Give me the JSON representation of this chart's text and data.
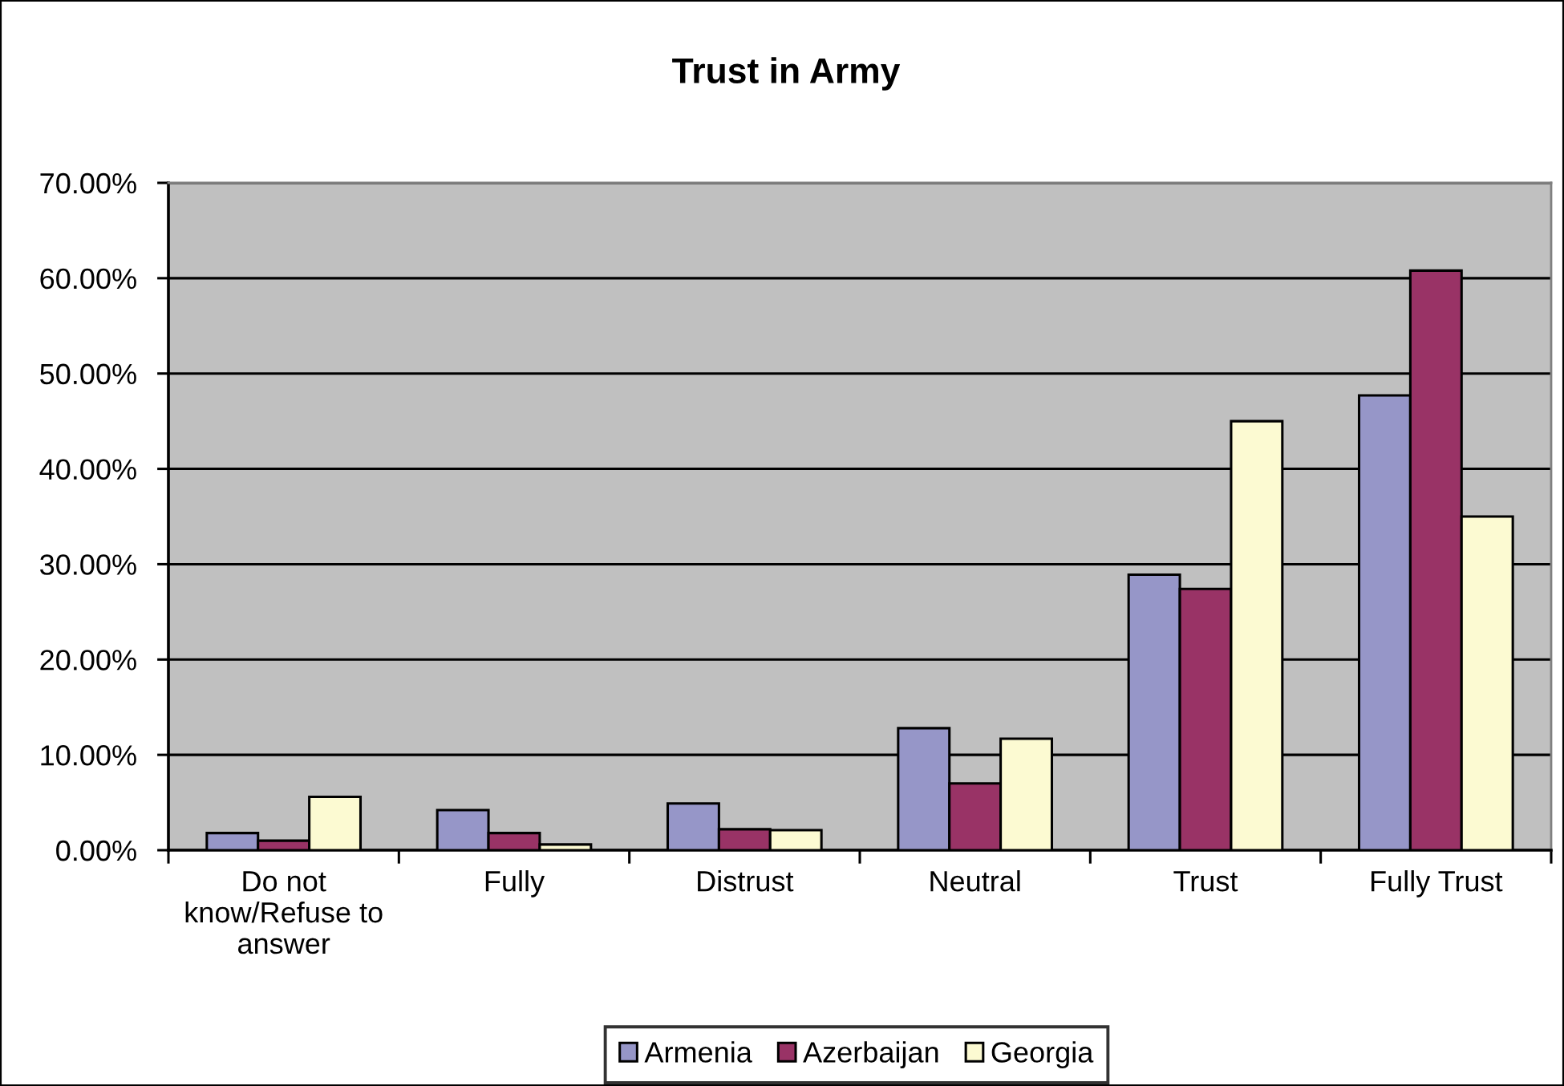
{
  "chart_data": {
    "type": "bar",
    "title": "Trust in Army",
    "categories": [
      "Do not know/Refuse to answer",
      "Fully",
      "Distrust",
      "Neutral",
      "Trust",
      "Fully Trust"
    ],
    "series": [
      {
        "name": "Armenia",
        "color": "#9696c8",
        "values": [
          1.8,
          4.2,
          4.9,
          12.8,
          28.9,
          47.7
        ]
      },
      {
        "name": "Azerbaijan",
        "color": "#993366",
        "values": [
          1.0,
          1.8,
          2.2,
          7.0,
          27.4,
          60.8
        ]
      },
      {
        "name": "Georgia",
        "color": "#fcfad2",
        "values": [
          5.6,
          0.6,
          2.1,
          11.7,
          45.0,
          35.0
        ]
      }
    ],
    "ylim": [
      0,
      70
    ],
    "yticks": [
      {
        "value": 0,
        "label": "0.00%"
      },
      {
        "value": 10,
        "label": "10.00%"
      },
      {
        "value": 20,
        "label": "20.00%"
      },
      {
        "value": 30,
        "label": "30.00%"
      },
      {
        "value": 40,
        "label": "40.00%"
      },
      {
        "value": 50,
        "label": "50.00%"
      },
      {
        "value": 60,
        "label": "60.00%"
      },
      {
        "value": 70,
        "label": "70.00%"
      }
    ],
    "grid": "y",
    "legend": "bottom"
  }
}
